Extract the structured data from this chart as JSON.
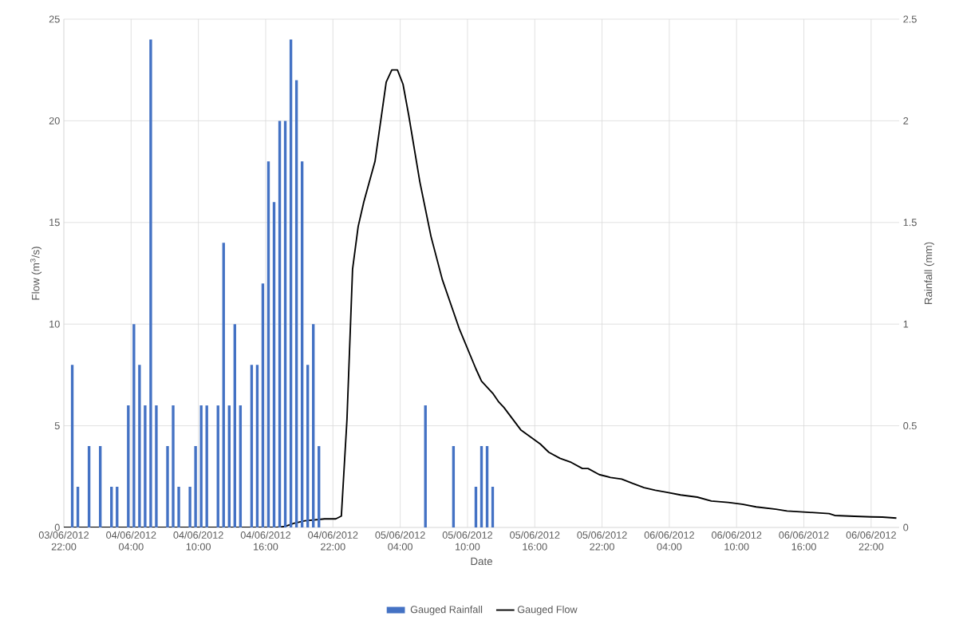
{
  "chart_data": {
    "type": "bar",
    "xlabel": "Date",
    "ylabel": "Flow (m$^{3}$/s)",
    "y2label": "Rainfall (mm)",
    "xlim": [
      "2012-06-03T22:00",
      "2012-06-07T00:30"
    ],
    "xticks": [
      {
        "value": "2012-06-03T22:00",
        "label": "03/06/2012 22:00"
      },
      {
        "value": "2012-06-04T04:00",
        "label": "04/06/2012 04:00"
      },
      {
        "value": "2012-06-04T10:00",
        "label": "04/06/2012 10:00"
      },
      {
        "value": "2012-06-04T16:00",
        "label": "04/06/2012 16:00"
      },
      {
        "value": "2012-06-04T22:00",
        "label": "04/06/2012 22:00"
      },
      {
        "value": "2012-06-05T04:00",
        "label": "05/06/2012 04:00"
      },
      {
        "value": "2012-06-05T10:00",
        "label": "05/06/2012 10:00"
      },
      {
        "value": "2012-06-05T16:00",
        "label": "05/06/2012 16:00"
      },
      {
        "value": "2012-06-05T22:00",
        "label": "05/06/2012 22:00"
      },
      {
        "value": "2012-06-06T04:00",
        "label": "06/06/2012 04:00"
      },
      {
        "value": "2012-06-06T10:00",
        "label": "06/06/2012 10:00"
      },
      {
        "value": "2012-06-06T16:00",
        "label": "06/06/2012 16:00"
      },
      {
        "value": "2012-06-06T22:00",
        "label": "06/06/2012 22:00"
      }
    ],
    "ylim": [
      0,
      25
    ],
    "yticks": [
      0,
      5,
      10,
      15,
      20,
      25
    ],
    "y2lim": [
      0,
      2.5
    ],
    "y2ticks": [
      0,
      0.5,
      1,
      1.5,
      2,
      2.5
    ],
    "grid": true,
    "legend": "bottom",
    "series": [
      {
        "name": "Gauged Rainfall",
        "axis": "y2",
        "color": "#4472c4",
        "x": [
          "2012-06-03T22:45",
          "2012-06-03T23:15",
          "2012-06-04T00:15",
          "2012-06-04T01:15",
          "2012-06-04T02:15",
          "2012-06-04T02:45",
          "2012-06-04T03:45",
          "2012-06-04T04:15",
          "2012-06-04T04:45",
          "2012-06-04T05:15",
          "2012-06-04T05:45",
          "2012-06-04T06:15",
          "2012-06-04T07:15",
          "2012-06-04T07:45",
          "2012-06-04T08:15",
          "2012-06-04T09:15",
          "2012-06-04T09:45",
          "2012-06-04T10:15",
          "2012-06-04T10:45",
          "2012-06-04T11:45",
          "2012-06-04T12:15",
          "2012-06-04T12:45",
          "2012-06-04T13:15",
          "2012-06-04T13:45",
          "2012-06-04T14:45",
          "2012-06-04T15:15",
          "2012-06-04T15:45",
          "2012-06-04T16:15",
          "2012-06-04T16:45",
          "2012-06-04T17:15",
          "2012-06-04T17:45",
          "2012-06-04T18:15",
          "2012-06-04T18:45",
          "2012-06-04T19:15",
          "2012-06-04T19:45",
          "2012-06-04T20:15",
          "2012-06-04T20:45",
          "2012-06-05T06:15",
          "2012-06-05T08:45",
          "2012-06-05T10:45",
          "2012-06-05T11:15",
          "2012-06-05T11:45",
          "2012-06-05T12:15"
        ],
        "values": [
          0.8,
          0.2,
          0.4,
          0.4,
          0.2,
          0.2,
          0.6,
          1.0,
          0.8,
          0.6,
          2.4,
          0.6,
          0.4,
          0.6,
          0.2,
          0.2,
          0.4,
          0.6,
          0.6,
          0.6,
          1.4,
          0.6,
          1.0,
          0.6,
          0.8,
          0.8,
          1.2,
          1.8,
          1.6,
          2.0,
          2.0,
          2.4,
          2.2,
          1.8,
          0.8,
          1.0,
          0.4,
          0.6,
          0.4,
          0.2,
          0.4,
          0.4,
          0.2
        ]
      },
      {
        "name": "Gauged Flow",
        "type": "line",
        "color": "#000000",
        "x": [
          "2012-06-03T22:00",
          "2012-06-04T17:00",
          "2012-06-04T17:45",
          "2012-06-04T18:30",
          "2012-06-04T19:30",
          "2012-06-04T20:45",
          "2012-06-04T21:15",
          "2012-06-04T22:15",
          "2012-06-04T22:45",
          "2012-06-04T23:15",
          "2012-06-04T23:45",
          "2012-06-05T00:15",
          "2012-06-05T00:45",
          "2012-06-05T01:45",
          "2012-06-05T02:45",
          "2012-06-05T03:15",
          "2012-06-05T03:45",
          "2012-06-05T04:15",
          "2012-06-05T04:45",
          "2012-06-05T05:45",
          "2012-06-05T06:45",
          "2012-06-05T07:45",
          "2012-06-05T08:15",
          "2012-06-05T09:15",
          "2012-06-05T10:45",
          "2012-06-05T11:15",
          "2012-06-05T12:15",
          "2012-06-05T12:45",
          "2012-06-05T13:15",
          "2012-06-05T14:45",
          "2012-06-05T16:30",
          "2012-06-05T17:15",
          "2012-06-05T18:15",
          "2012-06-05T19:15",
          "2012-06-05T20:15",
          "2012-06-05T20:45",
          "2012-06-05T21:45",
          "2012-06-05T22:45",
          "2012-06-05T23:45",
          "2012-06-06T00:45",
          "2012-06-06T01:45",
          "2012-06-06T02:45",
          "2012-06-06T03:45",
          "2012-06-06T05:00",
          "2012-06-06T06:30",
          "2012-06-06T07:45",
          "2012-06-06T09:15",
          "2012-06-06T10:30",
          "2012-06-06T11:45",
          "2012-06-06T13:30",
          "2012-06-06T14:30",
          "2012-06-06T16:15",
          "2012-06-06T18:15",
          "2012-06-06T18:45",
          "2012-06-06T20:30",
          "2012-06-06T22:00",
          "2012-06-06T23:00",
          "2012-06-07T00:15"
        ],
        "values": [
          0,
          0,
          0.05,
          0.2,
          0.33,
          0.39,
          0.42,
          0.42,
          0.56,
          5.3,
          12.7,
          14.8,
          16.0,
          18.0,
          21.9,
          22.5,
          22.5,
          21.8,
          20.3,
          17.0,
          14.3,
          12.2,
          11.4,
          9.8,
          7.8,
          7.2,
          6.6,
          6.2,
          5.9,
          4.8,
          4.1,
          3.7,
          3.4,
          3.2,
          2.9,
          2.9,
          2.6,
          2.46,
          2.38,
          2.16,
          1.96,
          1.83,
          1.73,
          1.6,
          1.49,
          1.3,
          1.23,
          1.14,
          1.01,
          0.9,
          0.81,
          0.75,
          0.68,
          0.59,
          0.55,
          0.52,
          0.51,
          0.46
        ]
      }
    ]
  }
}
